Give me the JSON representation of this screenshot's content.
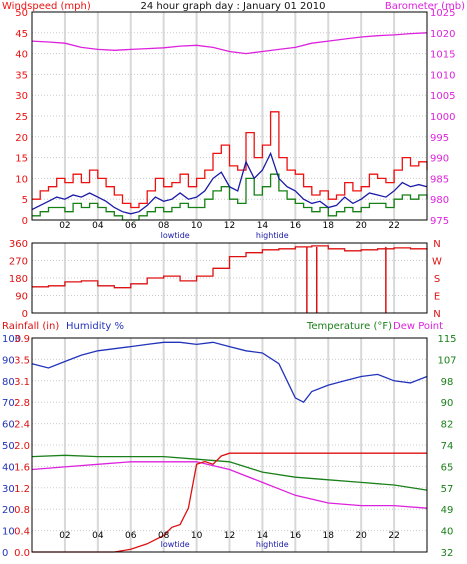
{
  "title": "24 hour graph day : January 01 2010",
  "colors": {
    "wind": "#ee1111",
    "gust": "#ee1111",
    "baro": "#dd22dd",
    "avg": "#1a1aa8",
    "minwind": "#158015",
    "dir": "#dd1111",
    "humidity": "#2233bb",
    "temp": "#1a801a",
    "dew": "#dd22dd",
    "rain": "#dd1111",
    "grid": "#d8d8d8"
  },
  "chart_data": [
    {
      "type": "line",
      "id": "wind-baro",
      "left_label": "Windspeed (mph)",
      "right_label": "Barometer (mb)",
      "y_left": {
        "min": 0,
        "max": 50,
        "ticks": [
          "0",
          "5",
          "10",
          "15",
          "20",
          "25",
          "30",
          "35",
          "40",
          "45",
          "50"
        ]
      },
      "y_right": {
        "min": 975,
        "max": 1025,
        "ticks": [
          "975",
          "980",
          "985",
          "990",
          "995",
          "1000",
          "1005",
          "1010",
          "1015",
          "1020",
          "1025"
        ]
      },
      "x_ticks": [
        "02",
        "04",
        "06",
        "08",
        "10",
        "12",
        "14",
        "16",
        "18",
        "20",
        "22"
      ],
      "tide_labels": [
        {
          "text": "lowtide",
          "hour": 8.7
        },
        {
          "text": "hightide",
          "hour": 14.6
        }
      ],
      "series": [
        {
          "name": "",
          "role": "gust",
          "x": [
            0,
            0.5,
            1,
            1.5,
            2,
            2.5,
            3,
            3.5,
            4,
            4.5,
            5,
            5.5,
            6,
            6.5,
            7,
            7.5,
            8,
            8.5,
            9,
            9.5,
            10,
            10.5,
            11,
            11.5,
            12,
            12.5,
            13,
            13.5,
            14,
            14.5,
            15,
            15.5,
            16,
            16.5,
            17,
            17.5,
            18,
            18.5,
            19,
            19.5,
            20,
            20.5,
            21,
            21.5,
            22,
            22.5,
            23,
            23.5,
            24
          ],
          "y": [
            5,
            7,
            8,
            10,
            9,
            11,
            9,
            12,
            10,
            8,
            6,
            4,
            3,
            4,
            7,
            10,
            8,
            9,
            11,
            8,
            10,
            12,
            16,
            18,
            13,
            12,
            21,
            15,
            18,
            26,
            15,
            12,
            11,
            8,
            6,
            7,
            5,
            6,
            9,
            7,
            8,
            11,
            10,
            9,
            12,
            15,
            13,
            14,
            12
          ]
        },
        {
          "name": "",
          "role": "avg",
          "x": [
            0,
            0.5,
            1,
            1.5,
            2,
            2.5,
            3,
            3.5,
            4,
            4.5,
            5,
            5.5,
            6,
            6.5,
            7,
            7.5,
            8,
            8.5,
            9,
            9.5,
            10,
            10.5,
            11,
            11.5,
            12,
            12.5,
            13,
            13.5,
            14,
            14.5,
            15,
            15.5,
            16,
            16.5,
            17,
            17.5,
            18,
            18.5,
            19,
            19.5,
            20,
            20.5,
            21,
            21.5,
            22,
            22.5,
            23,
            23.5,
            24
          ],
          "y": [
            2.5,
            3.5,
            4.5,
            5.5,
            5,
            6,
            5.5,
            6.5,
            5.5,
            4.5,
            3,
            2,
            1.5,
            2,
            3.5,
            5.5,
            4.5,
            5,
            6.5,
            5,
            5.5,
            7,
            10,
            11.5,
            8,
            7,
            14,
            10,
            12,
            16,
            10,
            8,
            7,
            5,
            4,
            4.5,
            3,
            3.5,
            5.5,
            4,
            5,
            6.5,
            6,
            5.5,
            7,
            9,
            8,
            8.5,
            8
          ]
        },
        {
          "name": "",
          "role": "min",
          "x": [
            0,
            0.5,
            1,
            1.5,
            2,
            2.5,
            3,
            3.5,
            4,
            4.5,
            5,
            5.5,
            6,
            6.5,
            7,
            7.5,
            8,
            8.5,
            9,
            9.5,
            10,
            10.5,
            11,
            11.5,
            12,
            12.5,
            13,
            13.5,
            14,
            14.5,
            15,
            15.5,
            16,
            16.5,
            17,
            17.5,
            18,
            18.5,
            19,
            19.5,
            20,
            20.5,
            21,
            21.5,
            22,
            22.5,
            23,
            23.5,
            24
          ],
          "y": [
            1,
            2,
            3,
            3,
            2,
            4,
            3,
            4,
            3,
            2,
            1,
            0,
            0,
            1,
            2,
            3,
            2,
            3,
            4,
            3,
            3,
            5,
            7,
            8,
            5,
            4,
            10,
            6,
            8,
            11,
            7,
            5,
            4,
            3,
            2,
            3,
            1,
            2,
            3,
            2,
            3,
            4,
            4,
            3,
            5,
            6,
            5,
            6,
            5
          ]
        },
        {
          "name": "",
          "role": "baro",
          "x": [
            0,
            1,
            2,
            3,
            4,
            5,
            6,
            7,
            8,
            9,
            10,
            11,
            12,
            13,
            14,
            15,
            16,
            17,
            18,
            19,
            20,
            21,
            22,
            23,
            24
          ],
          "y": [
            1018,
            1017.8,
            1017.5,
            1016.5,
            1016,
            1015.8,
            1016,
            1016.2,
            1016.4,
            1016.8,
            1017,
            1016.5,
            1015.5,
            1015,
            1015.5,
            1016,
            1016.5,
            1017.5,
            1018,
            1018.5,
            1019,
            1019.3,
            1019.5,
            1019.8,
            1020
          ]
        }
      ]
    },
    {
      "type": "line",
      "id": "wind-direction",
      "y_ticks": [
        "0",
        "90",
        "180",
        "270",
        "360"
      ],
      "y_range": [
        0,
        360
      ],
      "compass": [
        "N",
        "W",
        "S",
        "E",
        "N"
      ],
      "series": [
        {
          "name": "",
          "role": "direction",
          "x": [
            0,
            1,
            2,
            3,
            4,
            5,
            6,
            7,
            8,
            9,
            10,
            11,
            12,
            13,
            14,
            15,
            16,
            17,
            18,
            19,
            20,
            21,
            22,
            23,
            24
          ],
          "y": [
            135,
            140,
            160,
            165,
            140,
            130,
            150,
            180,
            190,
            165,
            190,
            230,
            290,
            310,
            325,
            330,
            340,
            345,
            330,
            320,
            325,
            330,
            335,
            330,
            325
          ]
        }
      ],
      "spikes": [
        16.7,
        17.3,
        21.5
      ]
    },
    {
      "type": "line",
      "id": "rain-humidity-temp",
      "rain_label": "Rainfall (in)",
      "humidity_label": "Humidity %",
      "temp_label": "Temperature (°F)",
      "dew_label": "Dew Point",
      "y_humidity": {
        "min": 0,
        "max": 100,
        "ticks": [
          "0",
          "10",
          "20",
          "30",
          "40",
          "50",
          "60",
          "70",
          "80",
          "90",
          "100"
        ]
      },
      "y_rain": {
        "min": 0,
        "max": 3.9,
        "ticks": [
          "0.0",
          "0.4",
          "0.8",
          "1.2",
          "1.6",
          "2.0",
          "2.4",
          "2.8",
          "3.1",
          "3.5",
          "3.9"
        ]
      },
      "y_temp": {
        "min": 32,
        "max": 115,
        "ticks": [
          "32",
          "40",
          "49",
          "57",
          "65",
          "74",
          "82",
          "90",
          "98",
          "107",
          "115"
        ]
      },
      "x_ticks": [
        "02",
        "04",
        "06",
        "08",
        "10",
        "12",
        "14",
        "16",
        "18",
        "20",
        "22"
      ],
      "tide_labels": [
        {
          "text": "lowtide",
          "hour": 8.7
        },
        {
          "text": "hightide",
          "hour": 14.6
        }
      ],
      "series": [
        {
          "name": "Humidity %",
          "role": "humidity",
          "x": [
            0,
            1,
            2,
            3,
            4,
            5,
            6,
            7,
            8,
            9,
            10,
            11,
            12,
            13,
            14,
            15,
            15.5,
            16,
            16.5,
            17,
            18,
            19,
            20,
            21,
            22,
            23,
            24
          ],
          "y": [
            88,
            86,
            89,
            92,
            94,
            95,
            96,
            97,
            98,
            98,
            97,
            98,
            96,
            94,
            93,
            88,
            80,
            72,
            70,
            75,
            78,
            80,
            82,
            83,
            80,
            79,
            82
          ]
        },
        {
          "name": "Rainfall (in)",
          "role": "rain",
          "x": [
            0,
            5,
            6,
            7,
            8,
            8.5,
            9,
            9.5,
            10,
            10.5,
            11,
            11.5,
            12,
            24
          ],
          "y": [
            0,
            0,
            0.05,
            0.15,
            0.3,
            0.45,
            0.5,
            0.8,
            1.6,
            1.65,
            1.6,
            1.75,
            1.8,
            1.8
          ]
        },
        {
          "name": "Temperature (°F)",
          "role": "temp",
          "x": [
            0,
            2,
            4,
            6,
            8,
            10,
            12,
            14,
            16,
            18,
            20,
            22,
            24
          ],
          "y": [
            69,
            69.5,
            69,
            69,
            69,
            68,
            67,
            63,
            61,
            60,
            59,
            58,
            56
          ]
        },
        {
          "name": "Dew Point",
          "role": "dew",
          "x": [
            0,
            2,
            4,
            6,
            8,
            10,
            12,
            14,
            16,
            18,
            20,
            22,
            24
          ],
          "y": [
            64,
            65,
            66,
            67,
            67,
            67,
            64,
            59,
            54,
            51,
            50,
            50,
            49
          ]
        }
      ]
    }
  ]
}
